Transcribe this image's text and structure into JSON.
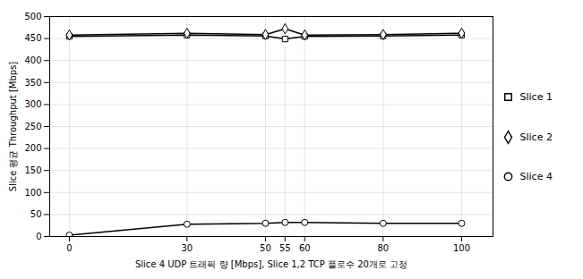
{
  "chart_data": {
    "type": "line",
    "xlabel": "Slice 4 UDP 트래픽 량 [Mbps], Slice 1,2 TCP 플로수 20개로 고정",
    "ylabel": "Slice 평균 Throughput [Mbps]",
    "x": [
      0,
      30,
      50,
      55,
      60,
      80,
      100
    ],
    "series": [
      {
        "name": "Slice 1",
        "color": "#000000",
        "marker": "square",
        "values": [
          455,
          458,
          456,
          449,
          455,
          456,
          458
        ]
      },
      {
        "name": "Slice 2",
        "color": "#000000",
        "marker": "diamond",
        "values": [
          458,
          462,
          459,
          472,
          458,
          459,
          462
        ]
      },
      {
        "name": "Slice 4",
        "color": "#000000",
        "marker": "circle",
        "values": [
          3,
          28,
          30,
          32,
          32,
          30,
          30
        ]
      }
    ],
    "xlim": [
      -5,
      108
    ],
    "ylim": [
      0,
      500
    ],
    "xticks": [
      0,
      30,
      50,
      55,
      60,
      80,
      100
    ],
    "yticks": [
      0,
      50,
      100,
      150,
      200,
      250,
      300,
      350,
      400,
      450,
      500
    ],
    "grid": true,
    "legend": "right"
  }
}
